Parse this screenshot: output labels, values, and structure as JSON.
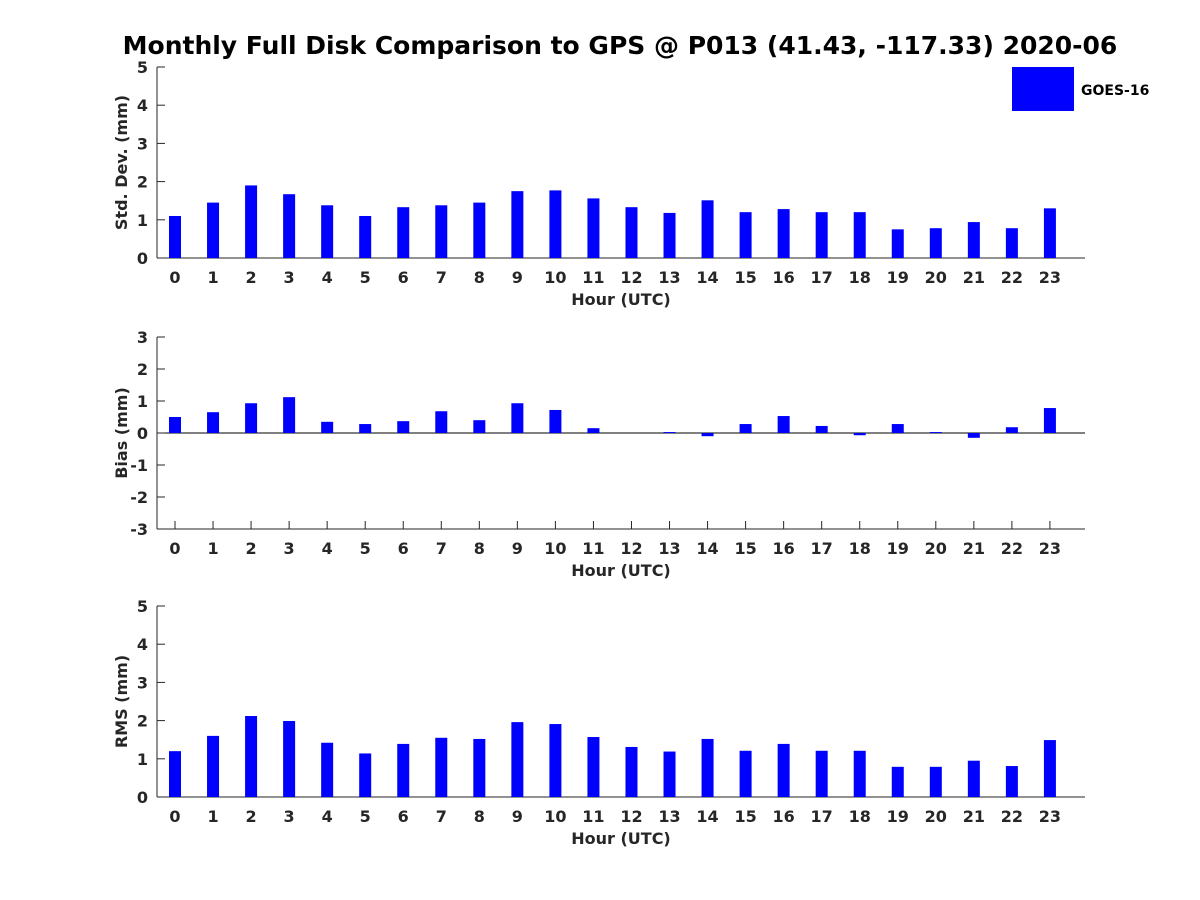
{
  "title": "Monthly Full Disk Comparison to GPS @ P013 (41.43, -117.33) 2020-06",
  "legend": {
    "label": "GOES-16",
    "color": "#0000ff",
    "placement": "top-right"
  },
  "bar_color": "#0000ff",
  "chart_data": [
    {
      "type": "bar",
      "name": "std-dev",
      "categories": [
        "0",
        "1",
        "2",
        "3",
        "4",
        "5",
        "6",
        "7",
        "8",
        "9",
        "10",
        "11",
        "12",
        "13",
        "14",
        "15",
        "16",
        "17",
        "18",
        "19",
        "20",
        "21",
        "22",
        "23"
      ],
      "series": [
        {
          "name": "GOES-16",
          "values": [
            1.1,
            1.45,
            1.9,
            1.67,
            1.38,
            1.1,
            1.33,
            1.38,
            1.45,
            1.75,
            1.77,
            1.56,
            1.33,
            1.18,
            1.51,
            1.2,
            1.28,
            1.2,
            1.2,
            0.75,
            0.78,
            0.94,
            0.78,
            1.3
          ]
        }
      ],
      "xlabel": "Hour (UTC)",
      "ylabel": "Std. Dev. (mm)",
      "ylim": [
        0,
        5
      ],
      "yticks": [
        0,
        1,
        2,
        3,
        4,
        5
      ],
      "grid": false
    },
    {
      "type": "bar",
      "name": "bias",
      "categories": [
        "0",
        "1",
        "2",
        "3",
        "4",
        "5",
        "6",
        "7",
        "8",
        "9",
        "10",
        "11",
        "12",
        "13",
        "14",
        "15",
        "16",
        "17",
        "18",
        "19",
        "20",
        "21",
        "22",
        "23"
      ],
      "series": [
        {
          "name": "GOES-16",
          "values": [
            0.5,
            0.65,
            0.93,
            1.12,
            0.35,
            0.28,
            0.37,
            0.68,
            0.4,
            0.93,
            0.72,
            0.15,
            0.0,
            0.03,
            -0.1,
            0.28,
            0.53,
            0.22,
            -0.07,
            0.28,
            0.03,
            -0.15,
            0.18,
            0.78
          ]
        }
      ],
      "xlabel": "Hour (UTC)",
      "ylabel": "Bias (mm)",
      "ylim": [
        -3,
        3
      ],
      "yticks": [
        -3,
        -2,
        -1,
        0,
        1,
        2,
        3
      ],
      "grid": false
    },
    {
      "type": "bar",
      "name": "rms",
      "categories": [
        "0",
        "1",
        "2",
        "3",
        "4",
        "5",
        "6",
        "7",
        "8",
        "9",
        "10",
        "11",
        "12",
        "13",
        "14",
        "15",
        "16",
        "17",
        "18",
        "19",
        "20",
        "21",
        "22",
        "23"
      ],
      "series": [
        {
          "name": "GOES-16",
          "values": [
            1.2,
            1.6,
            2.12,
            1.99,
            1.42,
            1.14,
            1.39,
            1.55,
            1.52,
            1.96,
            1.91,
            1.57,
            1.31,
            1.19,
            1.52,
            1.21,
            1.39,
            1.21,
            1.21,
            0.79,
            0.79,
            0.95,
            0.81,
            1.49
          ]
        }
      ],
      "xlabel": "Hour (UTC)",
      "ylabel": "RMS (mm)",
      "ylim": [
        0,
        5
      ],
      "yticks": [
        0,
        1,
        2,
        3,
        4,
        5
      ],
      "grid": false
    }
  ]
}
